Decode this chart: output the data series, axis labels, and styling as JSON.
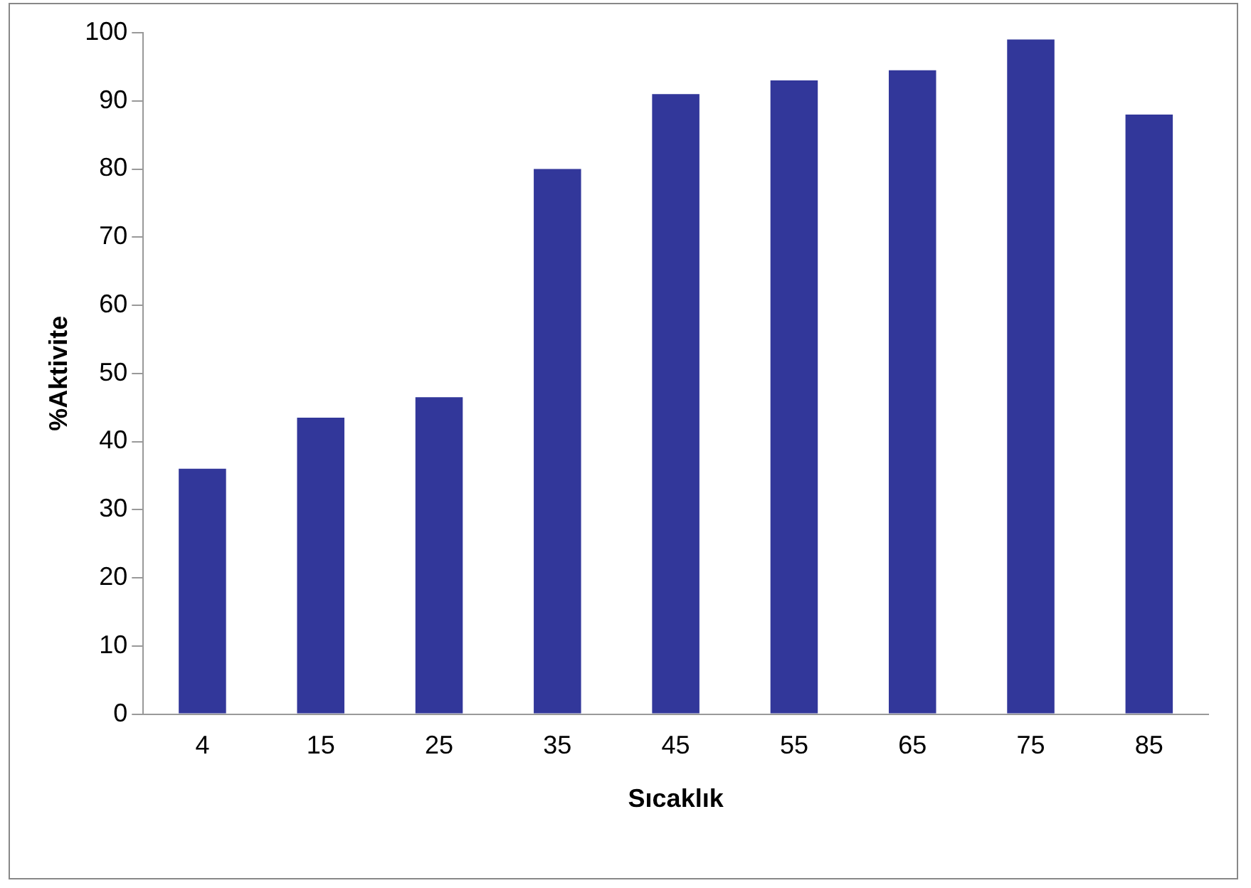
{
  "chart_data": {
    "type": "bar",
    "xlabel": "Sıcaklık",
    "ylabel": "%Aktivite",
    "categories": [
      "4",
      "15",
      "25",
      "35",
      "45",
      "55",
      "65",
      "75",
      "85"
    ],
    "values": [
      36,
      43.5,
      46.5,
      80,
      91,
      93,
      94.5,
      99,
      88
    ],
    "color": "#32379a",
    "ylim": [
      0,
      100
    ],
    "yticks": [
      0,
      10,
      20,
      30,
      40,
      50,
      60,
      70,
      80,
      90,
      100
    ],
    "grid": false,
    "legend": false
  }
}
